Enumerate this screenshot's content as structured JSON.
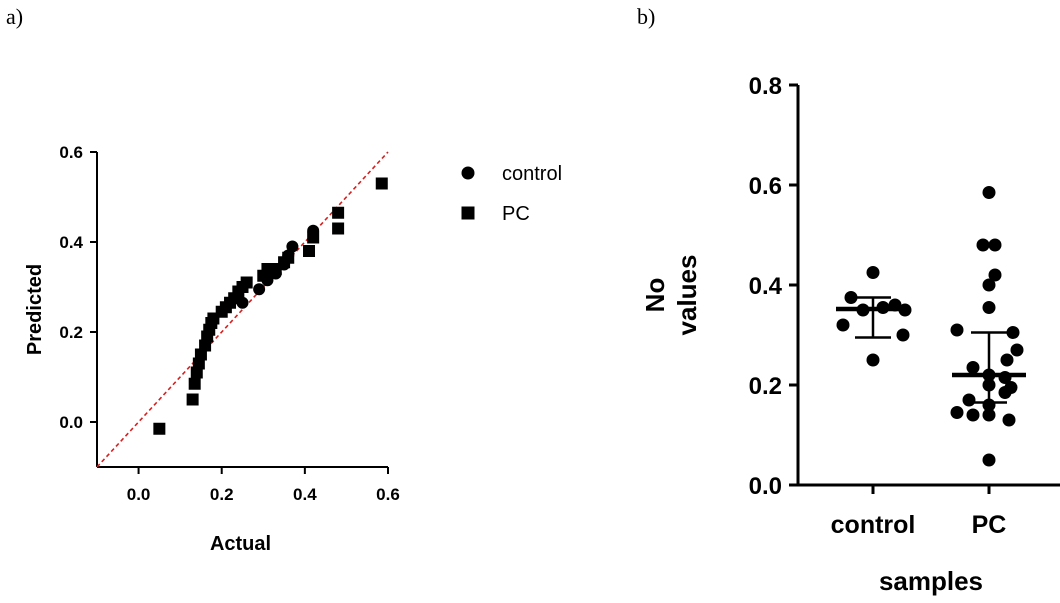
{
  "panels": {
    "a": "a)",
    "b": "b)"
  },
  "chart_data": [
    {
      "type": "scatter",
      "panel": "a)",
      "xlabel": "Actual",
      "ylabel": "Predicted",
      "xlim": [
        -0.1,
        0.6
      ],
      "ylim": [
        -0.1,
        0.6
      ],
      "xticks": [
        "0.0",
        "0.2",
        "0.4",
        "0.6"
      ],
      "yticks": [
        "0.0",
        "0.2",
        "0.4",
        "0.6"
      ],
      "legend": {
        "position": "right",
        "entries": [
          "control",
          "PC"
        ]
      },
      "reference_line": {
        "style": "dashed",
        "color": "#d62020",
        "from": [
          -0.1,
          -0.1
        ],
        "to": [
          0.6,
          0.6
        ]
      },
      "series": [
        {
          "name": "control",
          "marker": "circle",
          "points": [
            [
              0.25,
              0.265
            ],
            [
              0.29,
              0.295
            ],
            [
              0.31,
              0.315
            ],
            [
              0.33,
              0.33
            ],
            [
              0.35,
              0.35
            ],
            [
              0.36,
              0.37
            ],
            [
              0.37,
              0.39
            ],
            [
              0.42,
              0.425
            ]
          ]
        },
        {
          "name": "PC",
          "marker": "square",
          "points": [
            [
              0.05,
              -0.015
            ],
            [
              0.13,
              0.05
            ],
            [
              0.135,
              0.085
            ],
            [
              0.14,
              0.11
            ],
            [
              0.145,
              0.13
            ],
            [
              0.15,
              0.15
            ],
            [
              0.16,
              0.17
            ],
            [
              0.165,
              0.19
            ],
            [
              0.17,
              0.205
            ],
            [
              0.175,
              0.22
            ],
            [
              0.18,
              0.23
            ],
            [
              0.2,
              0.245
            ],
            [
              0.21,
              0.255
            ],
            [
              0.22,
              0.265
            ],
            [
              0.23,
              0.275
            ],
            [
              0.24,
              0.29
            ],
            [
              0.25,
              0.3
            ],
            [
              0.26,
              0.31
            ],
            [
              0.3,
              0.325
            ],
            [
              0.31,
              0.34
            ],
            [
              0.33,
              0.34
            ],
            [
              0.35,
              0.355
            ],
            [
              0.36,
              0.365
            ],
            [
              0.41,
              0.38
            ],
            [
              0.42,
              0.41
            ],
            [
              0.48,
              0.43
            ],
            [
              0.48,
              0.465
            ],
            [
              0.585,
              0.53
            ]
          ]
        }
      ]
    },
    {
      "type": "scatter",
      "panel": "b)",
      "xlabel": "samples",
      "ylabel_lines": [
        "No",
        "values"
      ],
      "ylim": [
        0,
        0.8
      ],
      "yticks": [
        "0.0",
        "0.2",
        "0.4",
        "0.6",
        "0.8"
      ],
      "categories": [
        "control",
        "PC"
      ],
      "series": [
        {
          "name": "control",
          "values": [
            0.425,
            0.375,
            0.36,
            0.35,
            0.355,
            0.35,
            0.32,
            0.3,
            0.25
          ],
          "median": 0.352,
          "iqr": [
            0.295,
            0.375
          ]
        },
        {
          "name": "PC",
          "values": [
            0.585,
            0.48,
            0.48,
            0.42,
            0.4,
            0.355,
            0.31,
            0.305,
            0.27,
            0.25,
            0.235,
            0.22,
            0.215,
            0.2,
            0.195,
            0.185,
            0.17,
            0.16,
            0.145,
            0.14,
            0.14,
            0.13,
            0.05
          ],
          "median": 0.22,
          "iqr": [
            0.165,
            0.305
          ]
        }
      ]
    }
  ]
}
